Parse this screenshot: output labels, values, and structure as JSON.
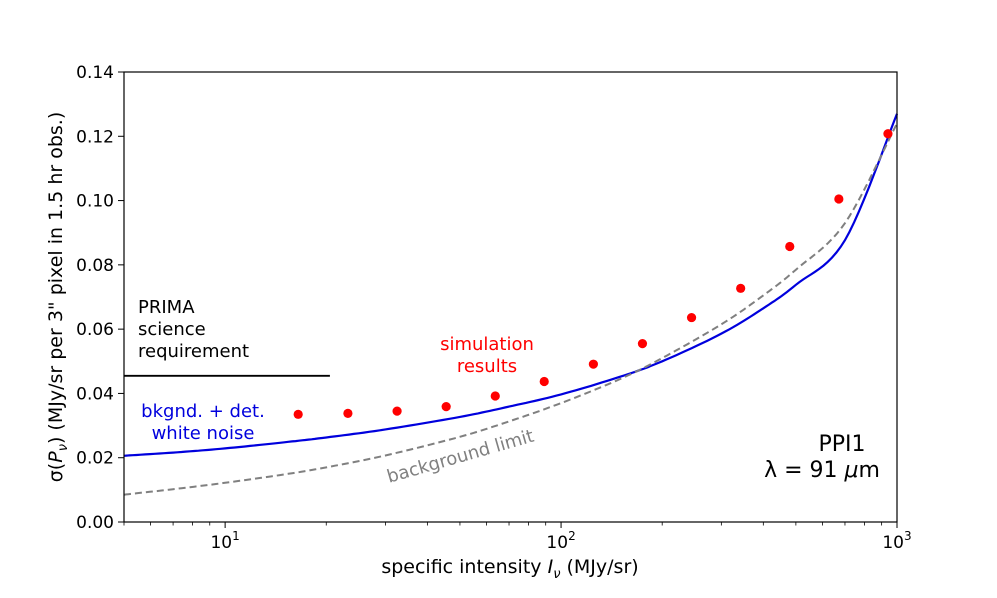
{
  "chart_data": {
    "type": "line",
    "xscale": "log",
    "xlim": [
      5,
      1000
    ],
    "ylim": [
      0,
      0.14
    ],
    "xlabel_prefix": "specific intensity ",
    "xlabel_var": "I",
    "xlabel_sub": "ν",
    "xlabel_suffix": " (MJy/sr)",
    "ylabel_prefix": "σ(",
    "ylabel_var": "P",
    "ylabel_sub": "ν",
    "ylabel_suffix": ") (MJy/sr per 3\" pixel in 1.5 hr obs.)",
    "x_ticks": [
      {
        "value": 10,
        "base": "10",
        "exp": "1"
      },
      {
        "value": 100,
        "base": "10",
        "exp": "2"
      },
      {
        "value": 1000,
        "base": "10",
        "exp": "3"
      }
    ],
    "y_ticks": [
      "0.00",
      "0.02",
      "0.04",
      "0.06",
      "0.08",
      "0.10",
      "0.12",
      "0.14"
    ],
    "series": [
      {
        "name": "bkgnd. + det. white noise",
        "style": "solid",
        "color": "#0000dd",
        "x": [
          5,
          7,
          10,
          15,
          20,
          30,
          50,
          70,
          100,
          150,
          200,
          300,
          400,
          500,
          700,
          1000
        ],
        "y": [
          0.0206,
          0.0216,
          0.0229,
          0.0248,
          0.0263,
          0.0288,
          0.0327,
          0.0359,
          0.0397,
          0.0452,
          0.05,
          0.0586,
          0.0665,
          0.0738,
          0.0877,
          0.127
        ]
      },
      {
        "name": "background limit",
        "style": "dashed",
        "color": "#808080",
        "x": [
          5,
          7,
          10,
          15,
          20,
          30,
          50,
          70,
          100,
          150,
          200,
          300,
          400,
          500,
          700,
          1000
        ],
        "y": [
          0.0085,
          0.0102,
          0.0122,
          0.0148,
          0.017,
          0.0207,
          0.0265,
          0.0313,
          0.037,
          0.0445,
          0.051,
          0.0615,
          0.0705,
          0.0785,
          0.093,
          0.124
        ]
      },
      {
        "name": "simulation results",
        "style": "markers",
        "color": "#ff0000",
        "x": [
          16.5,
          23.2,
          32.5,
          45.5,
          63.7,
          89.1,
          124.8,
          174.7,
          244.6,
          342.5,
          479.5,
          671.3,
          939.8
        ],
        "y": [
          0.0335,
          0.0338,
          0.0345,
          0.0359,
          0.0392,
          0.0437,
          0.0491,
          0.0555,
          0.0636,
          0.0727,
          0.0857,
          0.1005,
          0.1208
        ]
      },
      {
        "name": "PRIMA science requirement",
        "style": "solid",
        "color": "#000000",
        "x": [
          5,
          20.5
        ],
        "y": [
          0.0455,
          0.0455
        ]
      }
    ],
    "annotations": {
      "prima_lines": [
        "PRIMA",
        "science",
        "requirement"
      ],
      "sim_lines": [
        "simulation",
        "results"
      ],
      "noise_lines": [
        "bkgnd. + det.",
        "white noise"
      ],
      "background": "background limit",
      "field": "PPI1",
      "wavelength_prefix": "λ = 91 ",
      "wavelength_unit_greek": "μ",
      "wavelength_unit_rest": "m"
    },
    "colors": {
      "noise": "#0000dd",
      "background": "#808080",
      "simulation": "#ff0000",
      "requirement": "#000000"
    }
  }
}
